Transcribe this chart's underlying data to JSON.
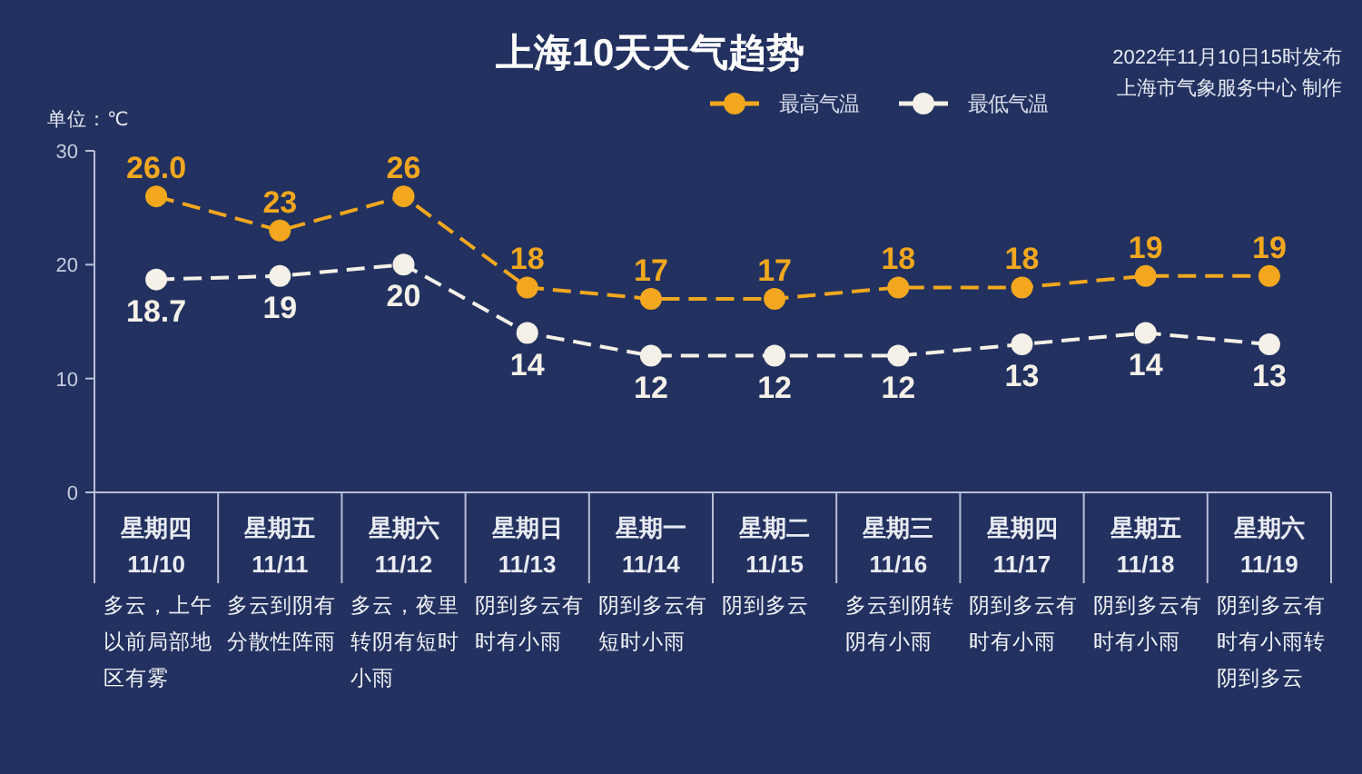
{
  "chart_data": {
    "type": "line",
    "title": "上海10天天气趋势",
    "ylabel": "单位：℃",
    "categories": [
      "星期四\n11/10",
      "星期五\n11/11",
      "星期六\n11/12",
      "星期日\n11/13",
      "星期一\n11/14",
      "星期二\n11/15",
      "星期三\n11/16",
      "星期四\n11/17",
      "星期五\n11/18",
      "星期六\n11/19"
    ],
    "series": [
      {
        "name": "最高气温",
        "color": "#f2a71e",
        "values": [
          26.0,
          23,
          26,
          18,
          17,
          17,
          18,
          18,
          19,
          19
        ],
        "value_labels": [
          "26.0",
          "23",
          "26",
          "18",
          "17",
          "17",
          "18",
          "18",
          "19",
          "19"
        ]
      },
      {
        "name": "最低气温",
        "color": "#f5f1e8",
        "values": [
          18.7,
          19,
          20,
          14,
          12,
          12,
          12,
          13,
          14,
          13
        ],
        "value_labels": [
          "18.7",
          "19",
          "20",
          "14",
          "12",
          "12",
          "12",
          "13",
          "14",
          "13"
        ]
      }
    ],
    "ylim": [
      0,
      30
    ],
    "yticks": [
      0,
      10,
      20,
      30
    ],
    "legend": "top",
    "marker": "circle",
    "line_style": "dashed",
    "annotations": [
      "2022年11月10日15时发布",
      "上海市气象服务中心 制作",
      "多云，上午以前局部地区有雾",
      "多云到阴有分散性阵雨",
      "多云，夜里转阴有短时小雨",
      "阴到多云有时有小雨",
      "阴到多云有短时小雨",
      "阴到多云",
      "多云到阴转阴有小雨",
      "阴到多云有时有小雨",
      "阴到多云有时有小雨",
      "阴到多云有时有小雨转阴到多云"
    ]
  }
}
